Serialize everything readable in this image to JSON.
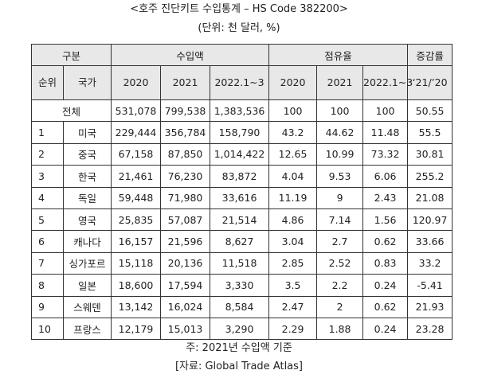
{
  "title": "<호주 진단키트 수입통계 – HS Code 382200>",
  "unit": "(단위: 천 달러, %)",
  "header": {
    "group_category": "구분",
    "group_import": "수입액",
    "group_share": "점유율",
    "group_growth": "증감률",
    "rank": "순위",
    "country": "국가",
    "import_2020": "2020",
    "import_2021": "2021",
    "import_2022": "2022.1~3",
    "share_2020": "2020",
    "share_2021": "2021",
    "share_2022": "2022.1~3",
    "growth": "‘21/’20"
  },
  "total": {
    "label": "전체",
    "import_2020": "531,078",
    "import_2021": "799,538",
    "import_2022": "1,383,536",
    "share_2020": "100",
    "share_2021": "100",
    "share_2022": "100",
    "growth": "50.55"
  },
  "rows": [
    {
      "rank": "1",
      "country": "미국",
      "import_2020": "229,444",
      "import_2021": "356,784",
      "import_2022": "158,790",
      "share_2020": "43.2",
      "share_2021": "44.62",
      "share_2022": "11.48",
      "growth": "55.5"
    },
    {
      "rank": "2",
      "country": "중국",
      "import_2020": "67,158",
      "import_2021": "87,850",
      "import_2022": "1,014,422",
      "share_2020": "12.65",
      "share_2021": "10.99",
      "share_2022": "73.32",
      "growth": "30.81"
    },
    {
      "rank": "3",
      "country": "한국",
      "import_2020": "21,461",
      "import_2021": "76,230",
      "import_2022": "83,872",
      "share_2020": "4.04",
      "share_2021": "9.53",
      "share_2022": "6.06",
      "growth": "255.2"
    },
    {
      "rank": "4",
      "country": "독일",
      "import_2020": "59,448",
      "import_2021": "71,980",
      "import_2022": "33,616",
      "share_2020": "11.19",
      "share_2021": "9",
      "share_2022": "2.43",
      "growth": "21.08"
    },
    {
      "rank": "5",
      "country": "영국",
      "import_2020": "25,835",
      "import_2021": "57,087",
      "import_2022": "21,514",
      "share_2020": "4.86",
      "share_2021": "7.14",
      "share_2022": "1.56",
      "growth": "120.97"
    },
    {
      "rank": "6",
      "country": "캐나다",
      "import_2020": "16,157",
      "import_2021": "21,596",
      "import_2022": "8,627",
      "share_2020": "3.04",
      "share_2021": "2.7",
      "share_2022": "0.62",
      "growth": "33.66"
    },
    {
      "rank": "7",
      "country": "싱가포르",
      "import_2020": "15,118",
      "import_2021": "20,136",
      "import_2022": "11,518",
      "share_2020": "2.85",
      "share_2021": "2.52",
      "share_2022": "0.83",
      "growth": "33.2"
    },
    {
      "rank": "8",
      "country": "일본",
      "import_2020": "18,600",
      "import_2021": "17,594",
      "import_2022": "3,330",
      "share_2020": "3.5",
      "share_2021": "2.2",
      "share_2022": "0.24",
      "growth": "-5.41"
    },
    {
      "rank": "9",
      "country": "스웨덴",
      "import_2020": "13,142",
      "import_2021": "16,024",
      "import_2022": "8,584",
      "share_2020": "2.47",
      "share_2021": "2",
      "share_2022": "0.62",
      "growth": "21.93"
    },
    {
      "rank": "10",
      "country": "프랑스",
      "import_2020": "12,179",
      "import_2021": "15,013",
      "import_2022": "3,290",
      "share_2020": "2.29",
      "share_2021": "1.88",
      "share_2022": "0.24",
      "growth": "23.28"
    }
  ],
  "note": "주: 2021년 수입액 기준",
  "source": "[자료: Global Trade Atlas]"
}
